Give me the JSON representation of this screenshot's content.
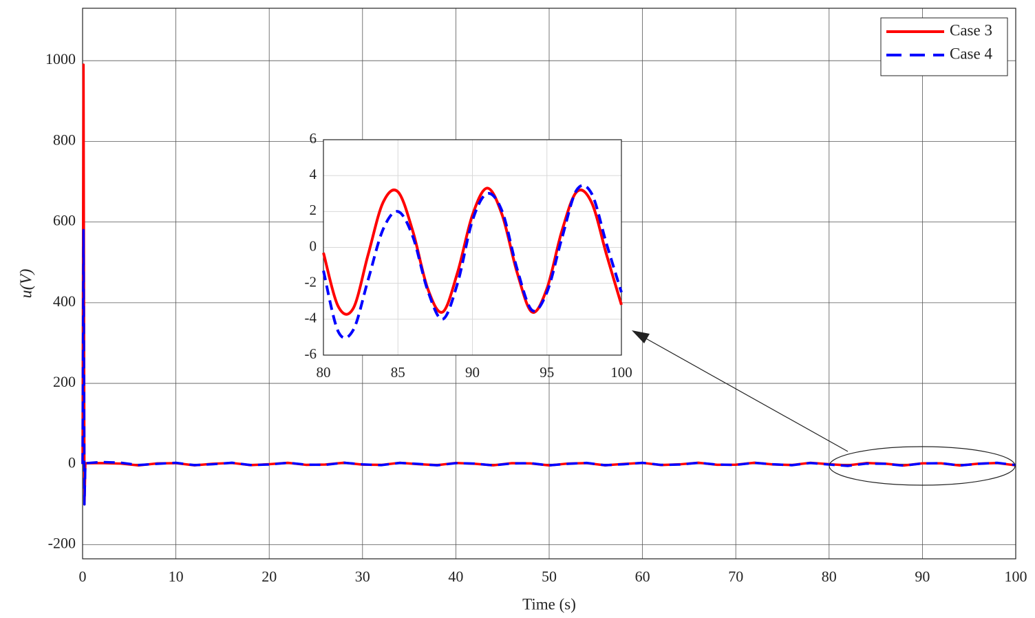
{
  "chart_data": [
    {
      "type": "line",
      "xlabel": "Time (s)",
      "ylabel": "u(V)",
      "legend": "northeast",
      "grid": true,
      "xlim": [
        0,
        100
      ],
      "ylim": [
        -235,
        1130
      ],
      "xticks": [
        0,
        10,
        20,
        30,
        40,
        50,
        60,
        70,
        80,
        90,
        100
      ],
      "yticks": [
        -200,
        0,
        200,
        400,
        600,
        800,
        1000
      ],
      "x": [
        0,
        0.1,
        0.2,
        0.3,
        2,
        4,
        6,
        8,
        10,
        12,
        14,
        16,
        18,
        20,
        22,
        24,
        26,
        28,
        30,
        32,
        34,
        36,
        38,
        40,
        42,
        44,
        46,
        48,
        50,
        52,
        54,
        56,
        58,
        60,
        62,
        64,
        66,
        68,
        70,
        72,
        74,
        76,
        78,
        80,
        82,
        84,
        86,
        88,
        90,
        92,
        94,
        96,
        98,
        100
      ],
      "series": [
        {
          "name": "Case 3",
          "color": "#ff0000",
          "style": "solid",
          "values": [
            0,
            990,
            -100,
            2,
            2.3,
            1.2,
            -3.3,
            1.5,
            2.1,
            -3.2,
            0.6,
            2.7,
            -2.8,
            -0.4,
            3.1,
            -2.2,
            -1.3,
            3.3,
            -1.4,
            -2.2,
            3.1,
            -0.4,
            -2.8,
            2.7,
            0.6,
            -3.2,
            2.1,
            1.5,
            -3.3,
            1.2,
            2.3,
            -3.1,
            0.2,
            2.9,
            -2.6,
            -0.7,
            3.2,
            -1.9,
            -1.6,
            3.3,
            -1.1,
            -2.4,
            3.0,
            -0.3,
            -3.4,
            2.5,
            0.9,
            -3.6,
            1.8,
            1.8,
            -3.6,
            0.9,
            2.5,
            -3.2
          ]
        },
        {
          "name": "Case 4",
          "color": "#0000ff",
          "style": "dashed",
          "values": [
            0,
            580,
            -100,
            2,
            5.0,
            3.5,
            -2.5,
            0.5,
            3.0,
            -2.8,
            -0.5,
            3.2,
            -2.6,
            -1.2,
            3.0,
            -1.5,
            -2.0,
            3.2,
            -0.8,
            -2.8,
            2.8,
            0.2,
            -3.2,
            2.2,
            1.2,
            -3.4,
            1.5,
            2.0,
            -3.3,
            0.5,
            2.8,
            -2.9,
            -0.6,
            3.1,
            -2.2,
            -1.3,
            3.1,
            -1.4,
            -2.2,
            3.0,
            -0.6,
            -2.9,
            2.6,
            -1.3,
            -4.6,
            1.0,
            0.6,
            -4.0,
            1.5,
            2.0,
            -3.5,
            0.5,
            3.0,
            -2.5
          ]
        }
      ]
    },
    {
      "type": "line",
      "grid": true,
      "xlim": [
        80,
        100
      ],
      "ylim": [
        -6,
        6
      ],
      "xticks": [
        80,
        85,
        90,
        95,
        100
      ],
      "yticks": [
        -6,
        -4,
        -2,
        0,
        2,
        4,
        6
      ],
      "x": [
        80,
        81,
        82,
        83,
        84,
        85,
        86,
        87,
        88,
        89,
        90,
        91,
        92,
        93,
        94,
        95,
        96,
        97,
        98,
        99,
        100
      ],
      "series": [
        {
          "color": "#ff0000",
          "style": "solid",
          "values": [
            -0.3,
            -3.3,
            -3.4,
            -0.4,
            2.5,
            3.1,
            0.9,
            -2.3,
            -3.6,
            -1.4,
            1.8,
            3.3,
            1.8,
            -1.4,
            -3.6,
            -2.3,
            0.9,
            3.1,
            2.5,
            -0.4,
            -3.2
          ]
        },
        {
          "color": "#0000ff",
          "style": "dashed",
          "values": [
            -1.3,
            -4.7,
            -4.6,
            -1.8,
            1.0,
            2.0,
            0.6,
            -2.4,
            -4.0,
            -2.0,
            1.5,
            3.0,
            2.0,
            -1.2,
            -3.5,
            -2.5,
            0.5,
            3.2,
            3.0,
            0.2,
            -2.5
          ]
        }
      ]
    }
  ]
}
